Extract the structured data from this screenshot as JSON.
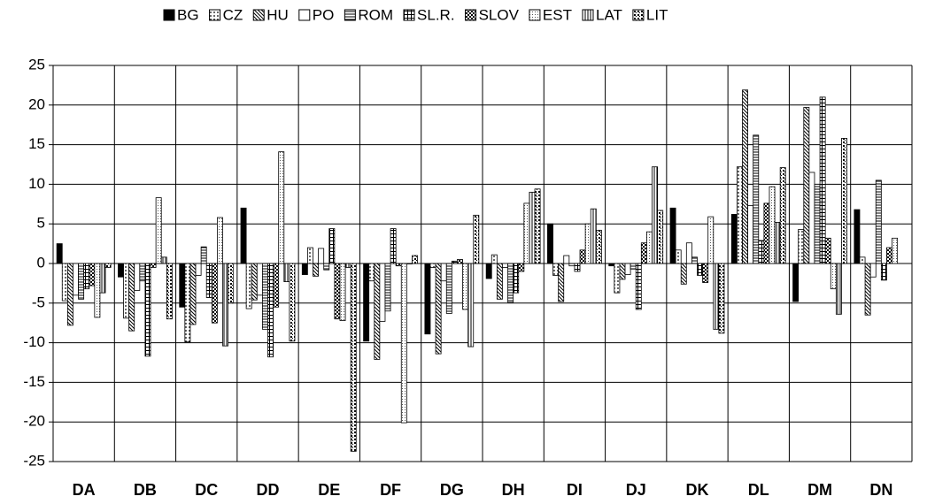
{
  "chart_data": {
    "type": "bar",
    "categories": [
      "DA",
      "DB",
      "DC",
      "DD",
      "DE",
      "DF",
      "DG",
      "DH",
      "DI",
      "DJ",
      "DK",
      "DL",
      "DM",
      "DN"
    ],
    "series": [
      {
        "name": "BG",
        "color": "#000000",
        "pattern": "solid",
        "values": [
          2.5,
          -1.7,
          -5.5,
          7,
          -1.4,
          -9.8,
          -8.9,
          -1.9,
          5,
          -0.3,
          7,
          6.2,
          -4.8,
          6.8
        ]
      },
      {
        "name": "CZ",
        "color": "#000000",
        "pattern": "dots",
        "values": [
          -4.7,
          -6.9,
          -9.9,
          -5.7,
          2,
          -2.2,
          -0.5,
          1.1,
          -1.5,
          -3.7,
          1.7,
          12.2,
          4.3,
          0.8
        ]
      },
      {
        "name": "HU",
        "color": "#000000",
        "pattern": "diagonal",
        "values": [
          -7.8,
          -8.5,
          -7.7,
          -4.6,
          -1.6,
          -12.1,
          -11.4,
          -4.5,
          -4.8,
          -2,
          -2.6,
          21.9,
          19.7,
          -6.5
        ]
      },
      {
        "name": "PO",
        "color": "#000000",
        "pattern": "none",
        "values": [
          -4,
          -3.4,
          -1.5,
          -4,
          1.9,
          -7.3,
          -2.2,
          -0.5,
          1,
          -1.4,
          2.6,
          7.3,
          11.5,
          -1.7
        ]
      },
      {
        "name": "ROM",
        "color": "#000000",
        "pattern": "horizontal",
        "values": [
          -4.5,
          -2.2,
          2.1,
          -8.3,
          -0.8,
          -6,
          -6.3,
          -4.9,
          -0.3,
          -0.7,
          0.8,
          16.2,
          10,
          10.5
        ]
      },
      {
        "name": "SL.R.",
        "color": "#000000",
        "pattern": "grid",
        "values": [
          -3.2,
          -11.7,
          -4.3,
          -11.8,
          4.4,
          4.4,
          0.3,
          -3.7,
          -1,
          -5.8,
          -1.5,
          2.9,
          21,
          -2.1
        ]
      },
      {
        "name": "SLOV",
        "color": "#000000",
        "pattern": "checker",
        "values": [
          -2.8,
          -0.5,
          -7.5,
          -5.5,
          -7,
          -0.3,
          0.5,
          -1,
          1.7,
          2.6,
          -2.4,
          7.6,
          3.2,
          2
        ]
      },
      {
        "name": "EST",
        "color": "#000000",
        "pattern": "fine-dots",
        "values": [
          -6.8,
          8.3,
          5.8,
          14.1,
          -7.2,
          -20.1,
          -5.8,
          7.6,
          5,
          4,
          5.9,
          9.7,
          -3.2,
          3.2
        ]
      },
      {
        "name": "LAT",
        "color": "#000000",
        "pattern": "vertical",
        "values": [
          -3.7,
          0.8,
          -10.4,
          -2.3,
          -0.5,
          0,
          -10.5,
          9,
          6.9,
          12.2,
          -8.3,
          5.2,
          -6.4,
          null
        ]
      },
      {
        "name": "LIT",
        "color": "#000000",
        "pattern": "cross",
        "values": [
          -0.5,
          -7,
          -5,
          -9.8,
          -23.7,
          1,
          6.1,
          9.4,
          4.2,
          6.7,
          -8.8,
          12.1,
          15.8,
          null
        ]
      }
    ],
    "ylim": [
      -25,
      25
    ],
    "yticks": [
      -25,
      -20,
      -15,
      -10,
      -5,
      0,
      5,
      10,
      15,
      20,
      25
    ],
    "grid": true,
    "legend": "top"
  }
}
